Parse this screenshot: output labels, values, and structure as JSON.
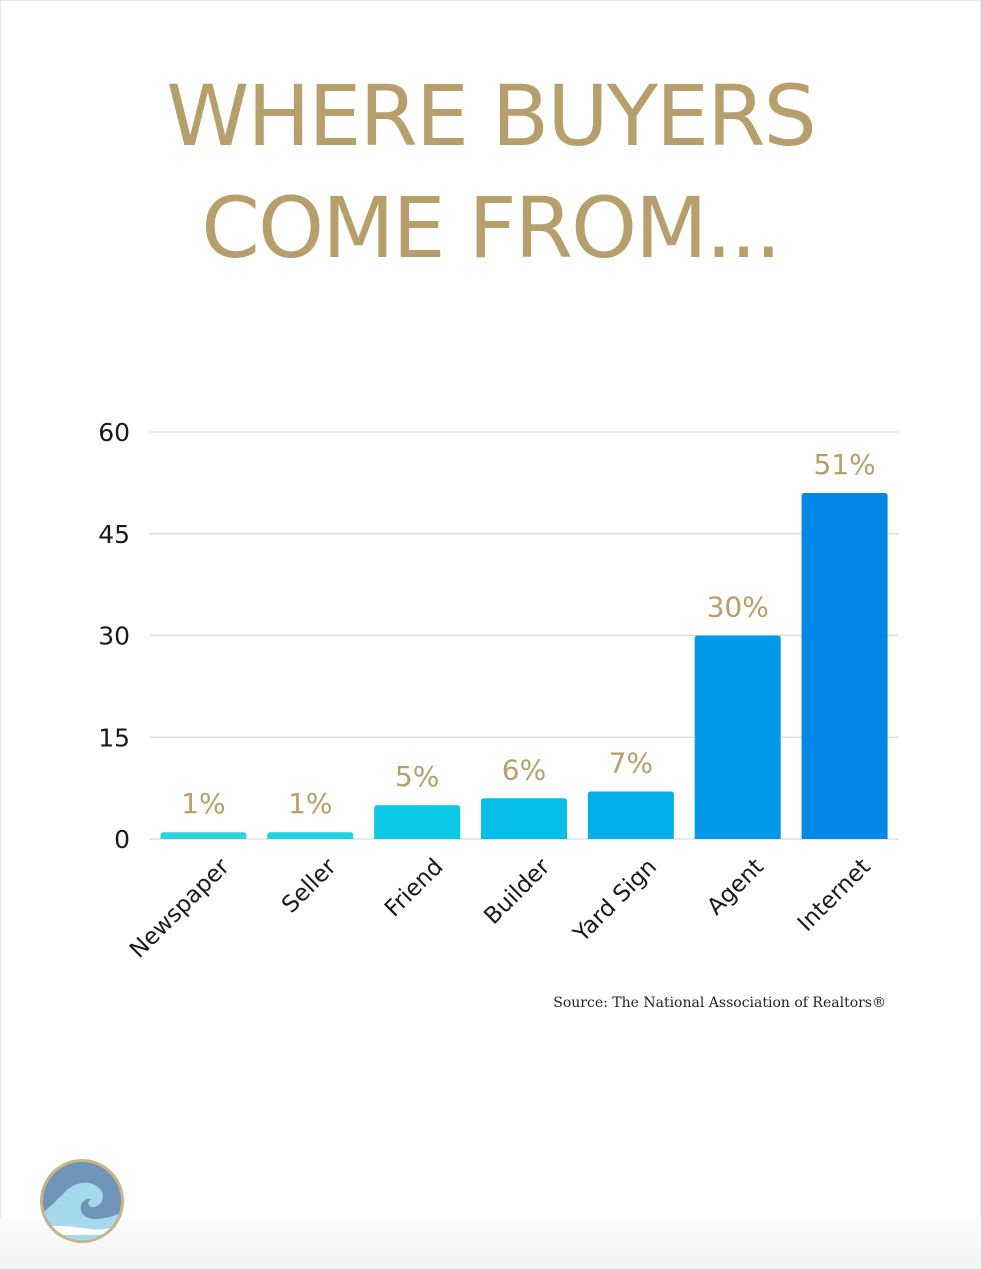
{
  "title": {
    "line1": "WHERE BUYERS",
    "line2": "COME FROM..."
  },
  "source": "Source: The National Association of Realtors®",
  "logo": {
    "icon": "wave-logo-icon",
    "colors": {
      "ring": "#c7b488",
      "sky": "#6e95b8",
      "wave": "#a6d9ec",
      "foam": "#ffffff"
    }
  },
  "colors": {
    "title": "#b69f6c",
    "data_label": "#b69f6c",
    "bars": [
      "#2ed3de",
      "#1dd0e2",
      "#0ccae6",
      "#05bde9",
      "#02aeea",
      "#0199e8",
      "#0188e6"
    ]
  },
  "chart_data": {
    "type": "bar",
    "categories": [
      "Newspaper",
      "Seller",
      "Friend",
      "Builder",
      "Yard Sign",
      "Agent",
      "Internet"
    ],
    "values": [
      1,
      1,
      5,
      6,
      7,
      30,
      51
    ],
    "data_labels": [
      "1%",
      "1%",
      "5%",
      "6%",
      "7%",
      "30%",
      "51%"
    ],
    "ylim": [
      0,
      60
    ],
    "yticks": [
      0,
      15,
      30,
      45,
      60
    ],
    "grid": true,
    "title": "",
    "xlabel": "",
    "ylabel": ""
  }
}
